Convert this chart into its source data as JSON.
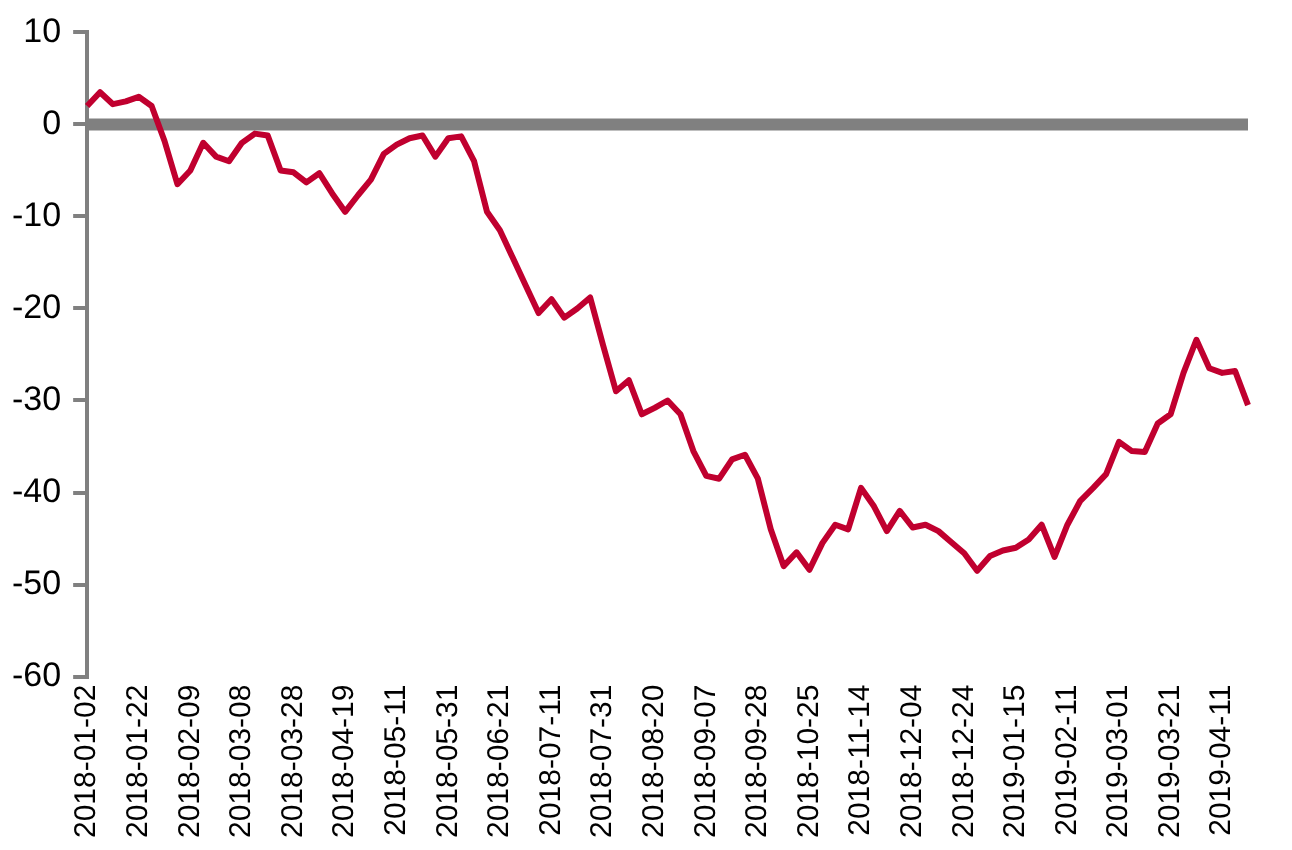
{
  "chart_data": {
    "type": "line",
    "categories": [
      "2018-01-02",
      null,
      null,
      null,
      "2018-01-22",
      null,
      null,
      null,
      "2018-02-09",
      null,
      null,
      null,
      "2018-03-08",
      null,
      null,
      null,
      "2018-03-28",
      null,
      null,
      null,
      "2018-04-19",
      null,
      null,
      null,
      "2018-05-11",
      null,
      null,
      null,
      "2018-05-31",
      null,
      null,
      null,
      "2018-06-21",
      null,
      null,
      null,
      "2018-07-11",
      null,
      null,
      null,
      "2018-07-31",
      null,
      null,
      null,
      "2018-08-20",
      null,
      null,
      null,
      "2018-09-07",
      null,
      null,
      null,
      "2018-09-28",
      null,
      null,
      null,
      "2018-10-25",
      null,
      null,
      null,
      "2018-11-14",
      null,
      null,
      null,
      "2018-12-04",
      null,
      null,
      null,
      "2018-12-24",
      null,
      null,
      null,
      "2019-01-15",
      null,
      null,
      null,
      "2019-02-11",
      null,
      null,
      null,
      "2019-03-01",
      null,
      null,
      null,
      "2019-03-21",
      null,
      null,
      null,
      "2019-04-11",
      null,
      null
    ],
    "series": [
      {
        "color": "#c0002f",
        "values": [
          2.0,
          3.5,
          2.2,
          2.5,
          3.0,
          2.0,
          -1.8,
          -6.5,
          -5.0,
          -2.0,
          -3.5,
          -4.0,
          -2.0,
          -1.0,
          -1.2,
          -5.0,
          -5.2,
          -6.3,
          -5.3,
          -7.5,
          -9.5,
          -7.7,
          -6.0,
          -3.2,
          -2.2,
          -1.5,
          -1.2,
          -3.5,
          -1.5,
          -1.3,
          -4.0,
          -9.5,
          -11.5,
          -14.5,
          -17.5,
          -20.5,
          -19.0,
          -21.0,
          -20.0,
          -18.8,
          -24.0,
          -29.0,
          -27.8,
          -31.5,
          -30.8,
          -30.0,
          -31.5,
          -35.5,
          -38.2,
          -38.5,
          -36.4,
          -35.9,
          -38.5,
          -44.0,
          -48.0,
          -46.5,
          -48.4,
          -45.5,
          -43.5,
          -44.0,
          -39.5,
          -41.5,
          -44.2,
          -42.0,
          -43.8,
          -43.5,
          -44.2,
          -45.4,
          -46.6,
          -48.5,
          -46.9,
          -46.3,
          -46.0,
          -45.1,
          -43.5,
          -47.0,
          -43.5,
          -40.9,
          -39.5,
          -38.0,
          -34.5,
          -35.5,
          -35.6,
          -32.5,
          -31.5,
          -27.0,
          -23.4,
          -26.5,
          -27.0,
          -26.8,
          -30.5
        ]
      }
    ],
    "ylim": [
      -60,
      10
    ],
    "yticks": [
      -60,
      -50,
      -40,
      -30,
      -20,
      -10,
      0,
      10
    ],
    "ref_lines": [
      {
        "axis": "y",
        "value": 0,
        "color": "#808080"
      }
    ],
    "grid": false,
    "legend": false,
    "marker": "none",
    "line_style": "solid"
  }
}
